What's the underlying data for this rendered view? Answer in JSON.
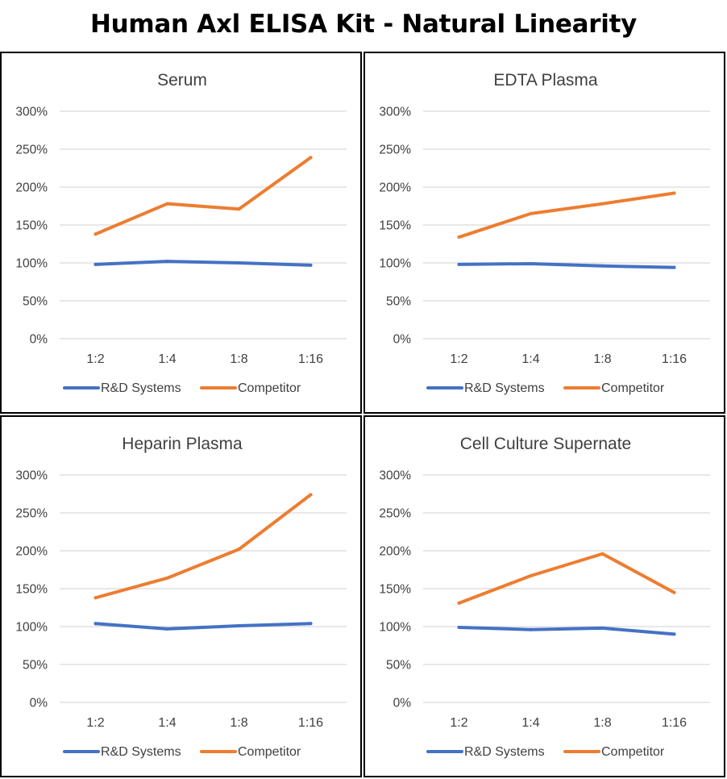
{
  "title": "Human Axl ELISA Kit - Natural Linearity",
  "colors": {
    "rd_systems": "#4472c4",
    "competitor": "#ed7d31",
    "grid": "#d9d9d9",
    "text": "#404040"
  },
  "chart_data": [
    {
      "type": "line",
      "title": "Serum",
      "categories": [
        "1:2",
        "1:4",
        "1:8",
        "1:16"
      ],
      "yticks": [
        "300%",
        "250%",
        "200%",
        "150%",
        "100%",
        "50%",
        "0%"
      ],
      "ylim": [
        0,
        300
      ],
      "legend": "bottom",
      "grid": true,
      "series": [
        {
          "name": "R&D Systems",
          "values": [
            98,
            102,
            100,
            97
          ]
        },
        {
          "name": "Competitor",
          "values": [
            138,
            178,
            171,
            239
          ]
        }
      ]
    },
    {
      "type": "line",
      "title": "EDTA Plasma",
      "categories": [
        "1:2",
        "1:4",
        "1:8",
        "1:16"
      ],
      "yticks": [
        "300%",
        "250%",
        "200%",
        "150%",
        "100%",
        "50%",
        "0%"
      ],
      "ylim": [
        0,
        300
      ],
      "legend": "bottom",
      "grid": true,
      "series": [
        {
          "name": "R&D Systems",
          "values": [
            98,
            99,
            96,
            94
          ]
        },
        {
          "name": "Competitor",
          "values": [
            134,
            165,
            178,
            192
          ]
        }
      ]
    },
    {
      "type": "line",
      "title": "Heparin Plasma",
      "categories": [
        "1:2",
        "1:4",
        "1:8",
        "1:16"
      ],
      "yticks": [
        "300%",
        "250%",
        "200%",
        "150%",
        "100%",
        "50%",
        "0%"
      ],
      "ylim": [
        0,
        300
      ],
      "legend": "bottom",
      "grid": true,
      "series": [
        {
          "name": "R&D Systems",
          "values": [
            104,
            97,
            101,
            104
          ]
        },
        {
          "name": "Competitor",
          "values": [
            138,
            164,
            202,
            274
          ]
        }
      ]
    },
    {
      "type": "line",
      "title": "Cell Culture Supernate",
      "categories": [
        "1:2",
        "1:4",
        "1:8",
        "1:16"
      ],
      "yticks": [
        "300%",
        "250%",
        "200%",
        "150%",
        "100%",
        "50%",
        "0%"
      ],
      "ylim": [
        0,
        300
      ],
      "legend": "bottom",
      "grid": true,
      "series": [
        {
          "name": "R&D Systems",
          "values": [
            99,
            96,
            98,
            90
          ]
        },
        {
          "name": "Competitor",
          "values": [
            131,
            167,
            196,
            145
          ]
        }
      ]
    }
  ]
}
